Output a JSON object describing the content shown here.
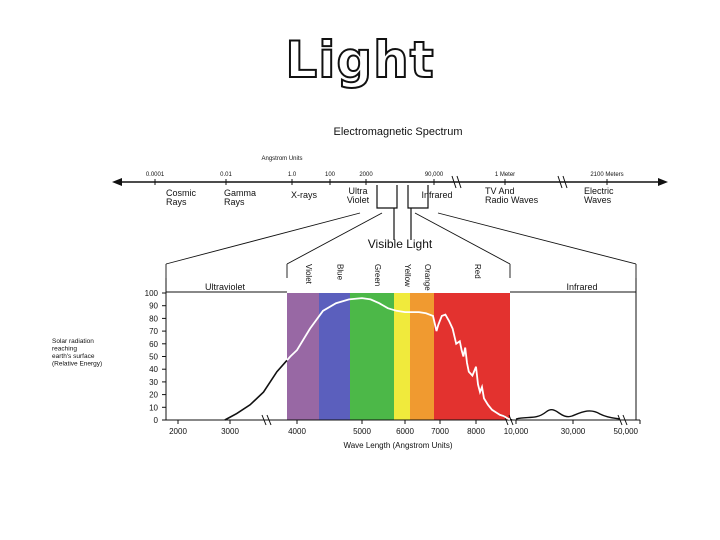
{
  "slide": {
    "title": "Light"
  },
  "spectrum": {
    "title": "Electromagnetic Spectrum",
    "units_label": "Angstrom Units",
    "scale_values": [
      "0.0001",
      "0.01",
      "1.0",
      "100",
      "2000",
      "90,000",
      "1 Meter",
      "2100 Meters"
    ],
    "regions": [
      {
        "name": "Cosmic Rays",
        "lines": [
          "Cosmic",
          "Rays"
        ]
      },
      {
        "name": "Gamma Rays",
        "lines": [
          "Gamma",
          "Rays"
        ]
      },
      {
        "name": "X-rays",
        "lines": [
          "X-rays"
        ]
      },
      {
        "name": "Ultra Violet",
        "lines": [
          "Ultra",
          "Violet"
        ]
      },
      {
        "name": "Infrared",
        "lines": [
          "Infrared"
        ]
      },
      {
        "name": "TV And Radio Waves",
        "lines": [
          "TV And",
          "Radio Waves"
        ]
      },
      {
        "name": "Electric Waves",
        "lines": [
          "Electric",
          "Waves"
        ]
      }
    ]
  },
  "chart_data": {
    "type": "line",
    "title": "Visible Light",
    "xlabel": "Wave Length (Angstrom Units)",
    "ylabel": "Solar radiation reaching earth's surface (Relative Energy)",
    "ylabel_lines": [
      "Solar radiation",
      "reaching",
      "earth's surface",
      "(Relative Energy)"
    ],
    "y_ticks": [
      0,
      10,
      20,
      30,
      40,
      50,
      60,
      70,
      80,
      90,
      100
    ],
    "ylim": [
      0,
      100
    ],
    "x_tick_labels": [
      "2000",
      "3000",
      "4000",
      "5000",
      "6000",
      "7000",
      "8000",
      "10,000",
      "30,000",
      "50,000"
    ],
    "band_labels": {
      "ultraviolet": "Ultraviolet",
      "infrared": "Infrared"
    },
    "color_bands": [
      {
        "name": "Violet",
        "color": "#9868a4",
        "start": 3900,
        "end": 4300
      },
      {
        "name": "Blue",
        "color": "#5b5fbd",
        "start": 4300,
        "end": 4850
      },
      {
        "name": "Green",
        "color": "#4cb848",
        "start": 4850,
        "end": 5600
      },
      {
        "name": "Yellow",
        "color": "#f0ea3c",
        "start": 5600,
        "end": 5900
      },
      {
        "name": "Orange",
        "color": "#f09a30",
        "start": 5900,
        "end": 6300
      },
      {
        "name": "Red",
        "color": "#e3322f",
        "start": 6300,
        "end": 7700
      }
    ],
    "series": [
      {
        "points": [
          [
            2900,
            0
          ],
          [
            3100,
            5
          ],
          [
            3300,
            12
          ],
          [
            3500,
            22
          ],
          [
            3700,
            38
          ],
          [
            3900,
            50
          ],
          [
            4000,
            55
          ],
          [
            4200,
            72
          ],
          [
            4400,
            86
          ],
          [
            4600,
            92
          ],
          [
            4800,
            95
          ],
          [
            5000,
            96
          ],
          [
            5200,
            95
          ],
          [
            5400,
            92
          ],
          [
            5600,
            88
          ],
          [
            5800,
            86
          ],
          [
            6000,
            85
          ],
          [
            6200,
            85
          ],
          [
            6400,
            85
          ],
          [
            6600,
            84
          ],
          [
            6800,
            82
          ],
          [
            6900,
            70
          ],
          [
            6950,
            75
          ],
          [
            7050,
            82
          ],
          [
            7150,
            83
          ],
          [
            7250,
            78
          ],
          [
            7350,
            72
          ],
          [
            7450,
            60
          ],
          [
            7550,
            62
          ],
          [
            7600,
            55
          ],
          [
            7650,
            50
          ],
          [
            7700,
            57
          ],
          [
            7750,
            45
          ],
          [
            7800,
            38
          ],
          [
            7900,
            35
          ],
          [
            8000,
            42
          ],
          [
            8100,
            28
          ],
          [
            8200,
            22
          ],
          [
            8300,
            26
          ],
          [
            8400,
            17
          ],
          [
            8600,
            12
          ],
          [
            8800,
            8
          ],
          [
            9000,
            6
          ],
          [
            9200,
            4
          ],
          [
            9400,
            3
          ],
          [
            9600,
            1
          ],
          [
            9800,
            0
          ]
        ]
      }
    ]
  }
}
